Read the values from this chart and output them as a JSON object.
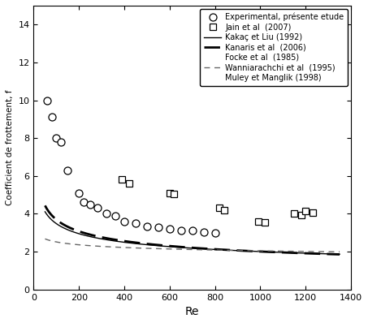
{
  "xlabel": "Re",
  "ylabel": "Coefficient de frottement, f",
  "xlim": [
    0,
    1400
  ],
  "ylim": [
    0,
    15
  ],
  "yticks": [
    0,
    2,
    4,
    6,
    8,
    10,
    12,
    14
  ],
  "xticks": [
    0,
    200,
    400,
    600,
    800,
    1000,
    1200,
    1400
  ],
  "exp_x": [
    60,
    80,
    100,
    120,
    150,
    200,
    220,
    250,
    280,
    320,
    360,
    400,
    450,
    500,
    550,
    600,
    650,
    700,
    750,
    800
  ],
  "exp_y": [
    10.0,
    9.1,
    8.0,
    7.8,
    6.3,
    5.1,
    4.6,
    4.5,
    4.3,
    4.0,
    3.9,
    3.6,
    3.5,
    3.35,
    3.3,
    3.2,
    3.1,
    3.1,
    3.05,
    3.0
  ],
  "jain_x": [
    390,
    420,
    600,
    620,
    820,
    840,
    990,
    1020,
    1150,
    1180,
    1200,
    1230
  ],
  "jain_y": [
    5.8,
    5.6,
    5.1,
    5.05,
    4.3,
    4.2,
    3.6,
    3.55,
    4.0,
    3.95,
    4.15,
    4.05
  ],
  "kakac_A": 10.5,
  "kakac_n": 0.24,
  "kanaris_A": 12.5,
  "kanaris_n": 0.265,
  "wannia_A": 3.8,
  "wannia_n": 0.09,
  "Re_start": 50,
  "Re_end": 1350,
  "legend_labels": [
    "Experimental, présente etude",
    "Jain et al  (2007)",
    "Kakaç et Liu (1992)",
    "Kanaris et al  (2006)",
    "Focke et al  (1985)",
    "Wanniarachchi et al  (1995)",
    "Muley et Manglik (1998)"
  ]
}
